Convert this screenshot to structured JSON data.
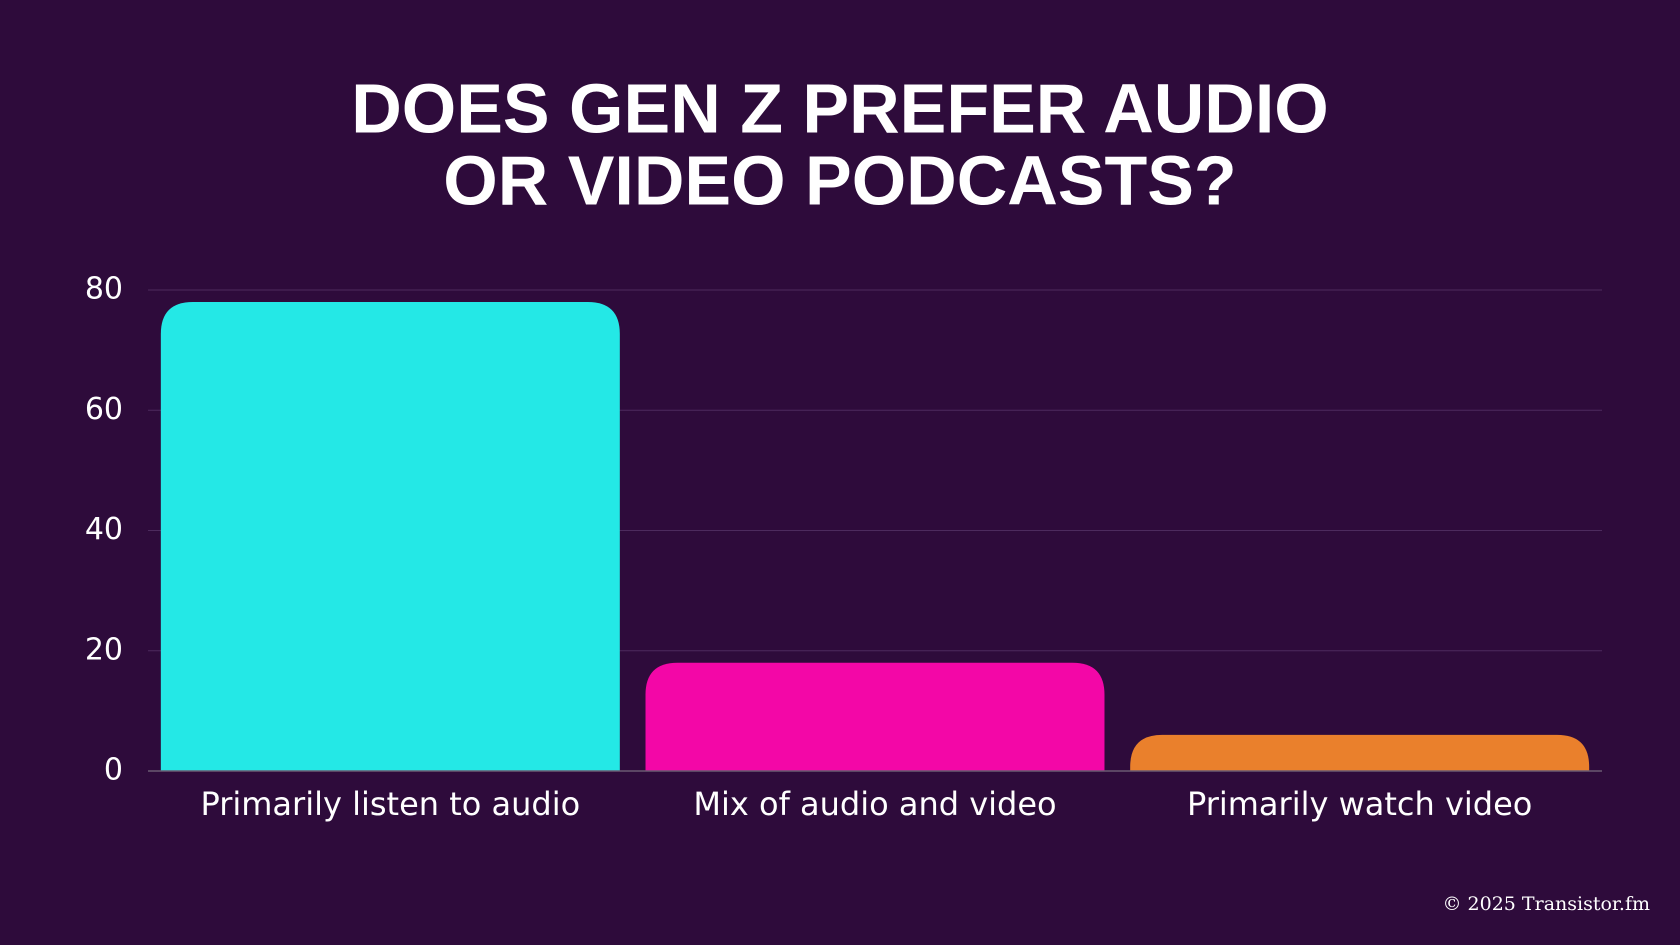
{
  "chart_data": {
    "type": "bar",
    "title": [
      "DOES GEN Z PREFER AUDIO",
      "OR VIDEO PODCASTS?"
    ],
    "categories": [
      "Primarily listen to audio",
      "Mix of audio and video",
      "Primarily watch video"
    ],
    "values": [
      78,
      18,
      6
    ],
    "colors": [
      "#24e8e6",
      "#f307a7",
      "#ea802c"
    ],
    "ylim": [
      0,
      80
    ],
    "yticks": [
      0,
      20,
      40,
      60,
      80
    ],
    "grid": true,
    "footer": "© 2025 Transistor.fm"
  }
}
